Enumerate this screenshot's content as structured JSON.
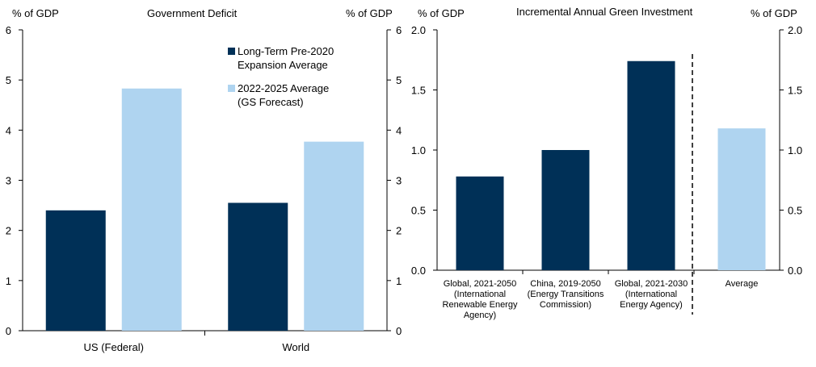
{
  "chart_data": [
    {
      "type": "bar",
      "title": "Government  Deficit",
      "ylabel_left": "% of GDP",
      "ylabel_right": "% of GDP",
      "ylim": [
        0,
        6
      ],
      "yticks": [
        "0",
        "1",
        "2",
        "3",
        "4",
        "5",
        "6"
      ],
      "categories": [
        "US (Federal)",
        "World"
      ],
      "series": [
        {
          "name": "Long-Term Pre-2020 Expansion Average",
          "legend_lines": [
            "Long-Term Pre-2020",
            "Expansion Average"
          ],
          "color": "#003057",
          "values": [
            2.4,
            2.55
          ]
        },
        {
          "name": "2022-2025 Average (GS Forecast)",
          "legend_lines": [
            "2022-2025 Average",
            "(GS Forecast)"
          ],
          "color": "#afd4f0",
          "values": [
            4.83,
            3.77
          ]
        }
      ],
      "legend_position": "top-right"
    },
    {
      "type": "bar",
      "title": "Incremental  Annual  Green Investment",
      "ylabel_left": "% of GDP",
      "ylabel_right": "% of GDP",
      "ylim": [
        0,
        2
      ],
      "yticks": [
        "0.0",
        "0.5",
        "1.0",
        "1.5",
        "2.0"
      ],
      "categories": [
        {
          "lines": [
            "Global, 2021-2050",
            "(International",
            "Renewable Energy",
            "Agency)"
          ],
          "value": 0.78,
          "color": "#003057"
        },
        {
          "lines": [
            "China, 2019-2050",
            "(Energy Transitions",
            "Commission)"
          ],
          "value": 1.0,
          "color": "#003057"
        },
        {
          "lines": [
            "Global, 2021-2030",
            "(International",
            "Energy Agency)"
          ],
          "value": 1.74,
          "color": "#003057"
        },
        {
          "lines": [
            "Average"
          ],
          "value": 1.18,
          "color": "#afd4f0"
        }
      ],
      "separator_after_index": 2
    }
  ]
}
